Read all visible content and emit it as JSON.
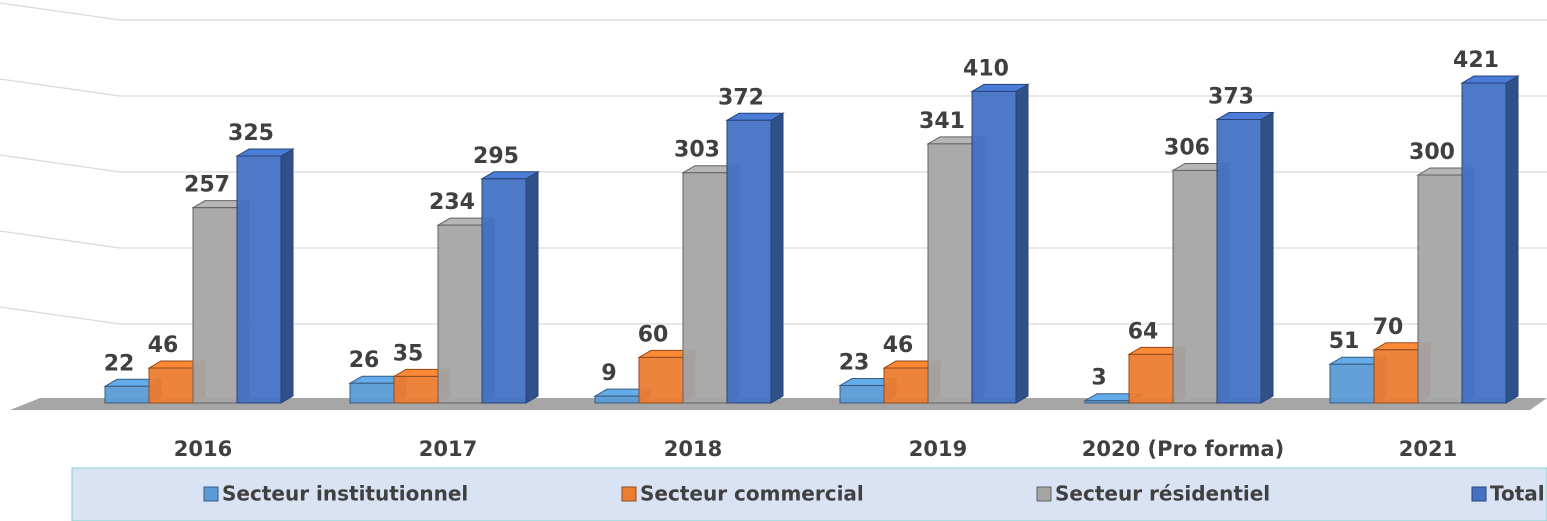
{
  "chart_data": {
    "type": "bar3d",
    "categories": [
      "2016",
      "2017",
      "2018",
      "2019",
      "2020 (Pro forma)",
      "2021"
    ],
    "series": [
      {
        "name": "Secteur institutionnel",
        "color": "#5b9bd5",
        "values": [
          22,
          26,
          9,
          23,
          3,
          51
        ]
      },
      {
        "name": "Secteur commercial",
        "color": "#ed7d31",
        "values": [
          46,
          35,
          60,
          46,
          64,
          70
        ]
      },
      {
        "name": "Secteur résidentiel",
        "color": "#a5a5a5",
        "values": [
          257,
          234,
          303,
          341,
          306,
          300
        ]
      },
      {
        "name": "Total",
        "color": "#4472c4",
        "values": [
          325,
          295,
          372,
          410,
          373,
          421
        ]
      }
    ],
    "ylim": [
      0,
      500
    ],
    "yticks": [
      0,
      100,
      200,
      300,
      400,
      500
    ],
    "grid": true,
    "legend": "bottom"
  }
}
